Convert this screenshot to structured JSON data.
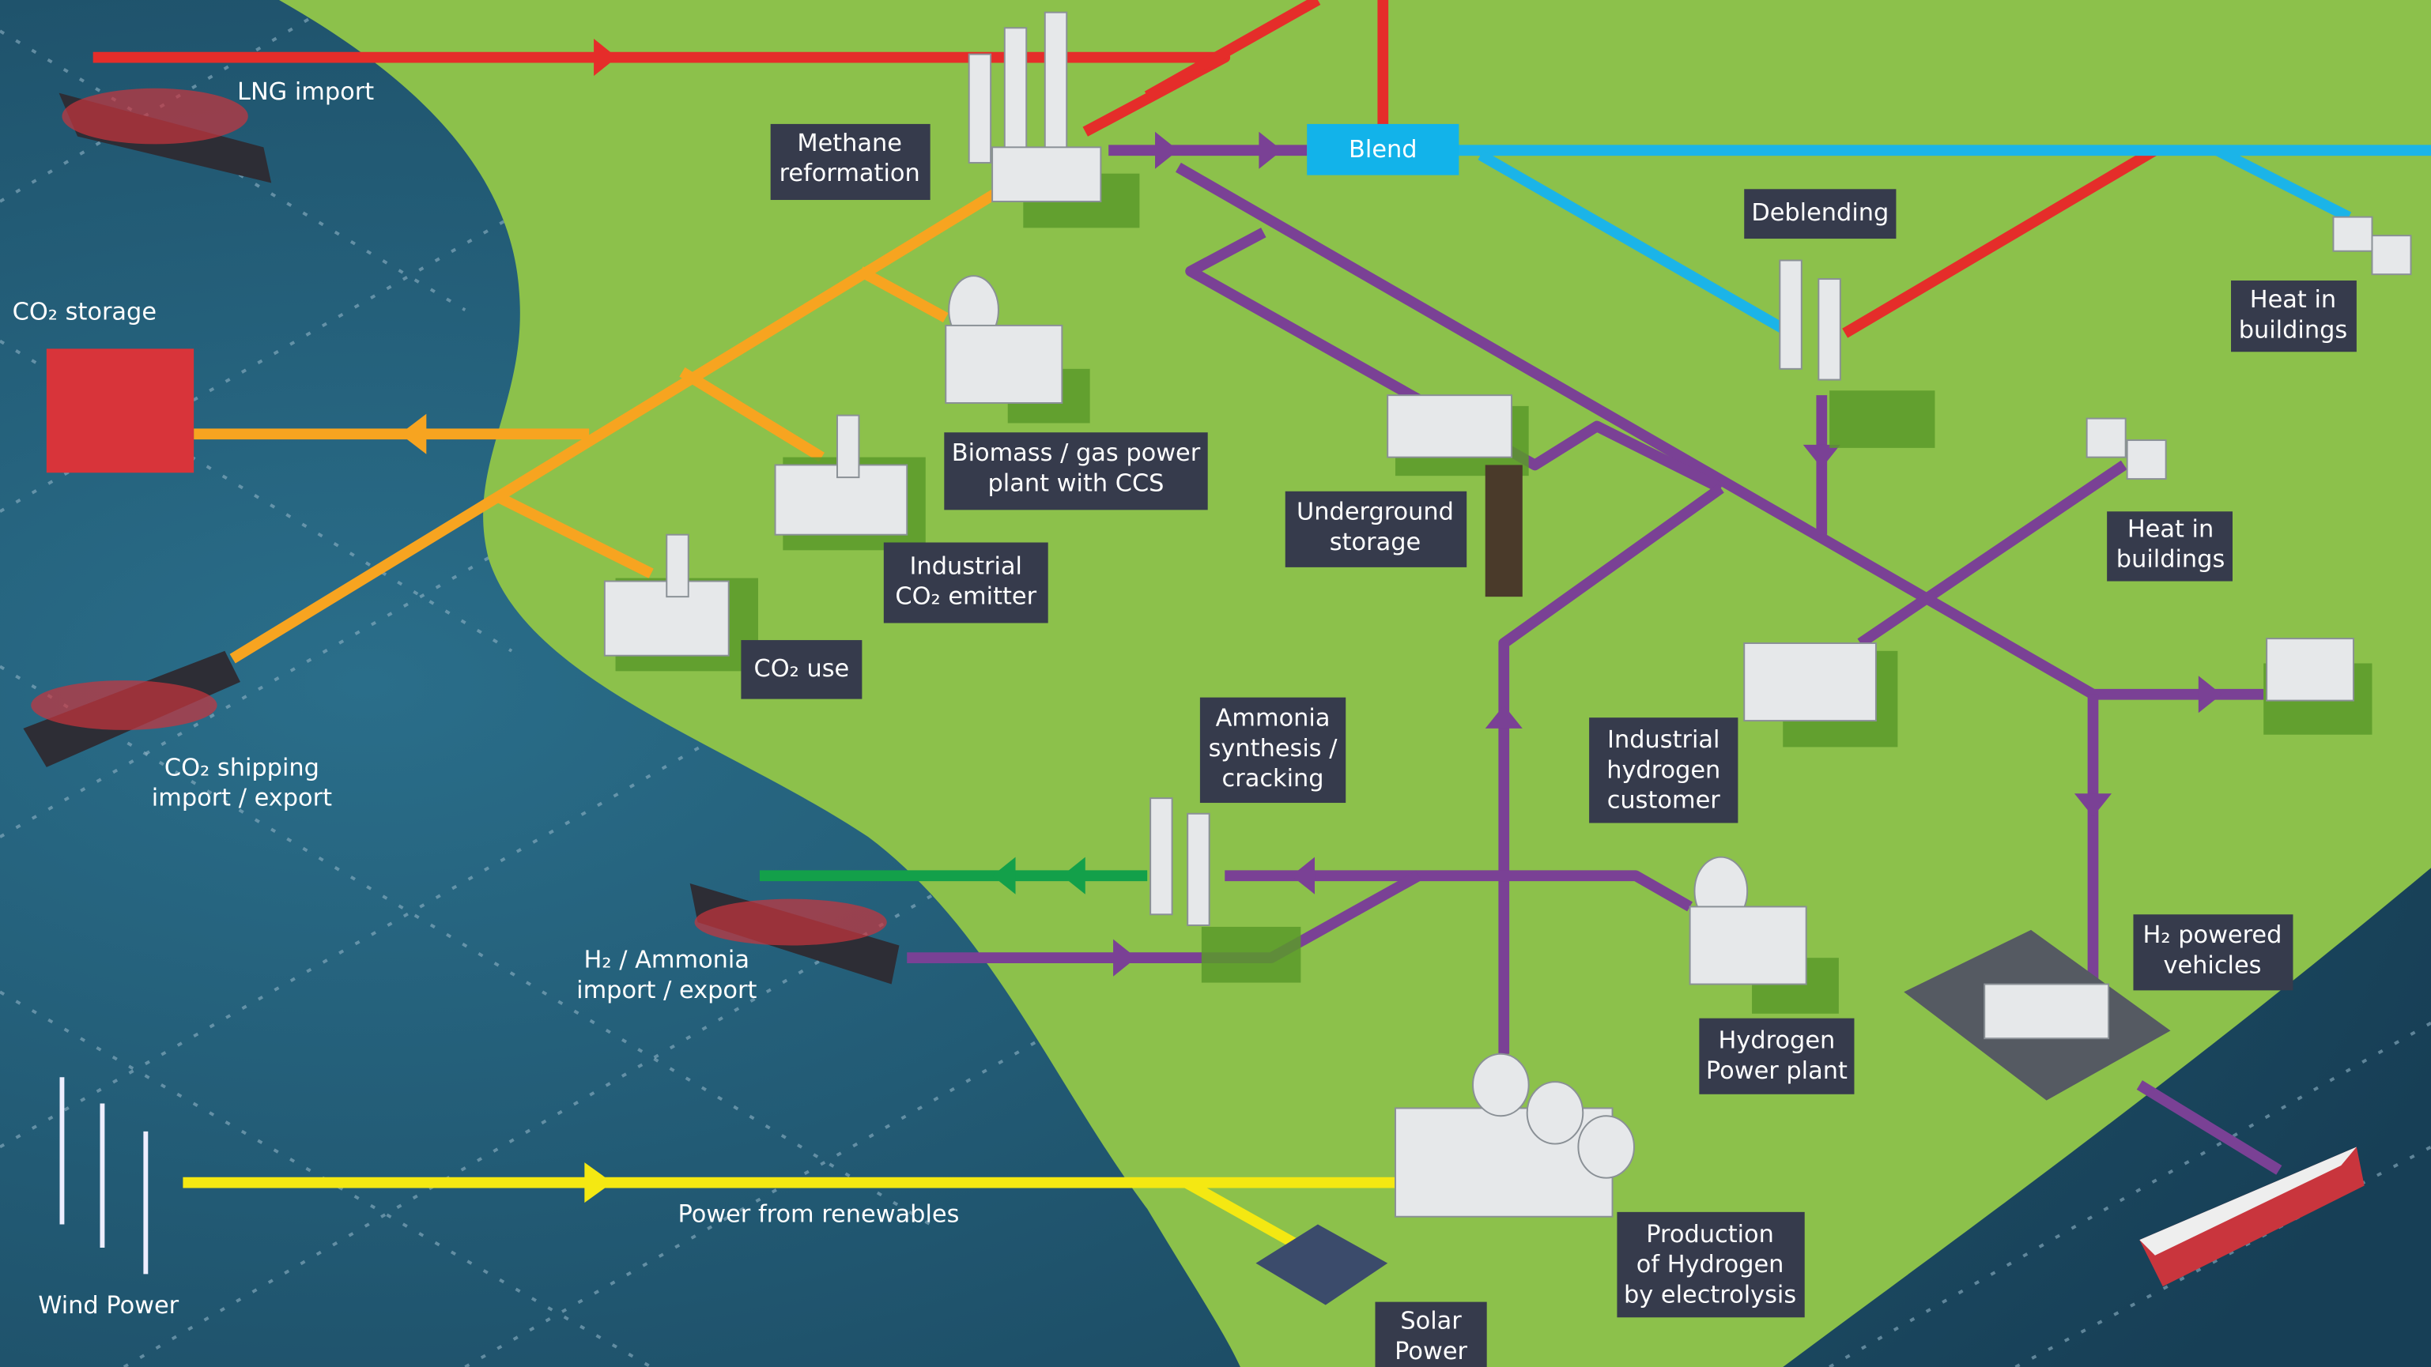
{
  "labels": [
    {
      "lines": [
        "LNG import"
      ]
    },
    {
      "lines": [
        "Methane",
        "reformation"
      ]
    },
    {
      "lines": [
        "Blend"
      ]
    },
    {
      "lines": [
        "Deblending"
      ]
    },
    {
      "lines": [
        "Heat in",
        "buildings"
      ]
    },
    {
      "lines": [
        "CO₂ storage"
      ]
    },
    {
      "lines": [
        "Biomass / gas power",
        "plant with CCS"
      ]
    },
    {
      "lines": [
        "Industrial",
        "CO₂ emitter"
      ]
    },
    {
      "lines": [
        "Underground",
        "storage"
      ]
    },
    {
      "lines": [
        "Heat in",
        "buildings"
      ]
    },
    {
      "lines": [
        "CO₂ use"
      ]
    },
    {
      "lines": [
        "CO₂ shipping",
        "import / export"
      ]
    },
    {
      "lines": [
        "Ammonia",
        "synthesis /",
        "cracking"
      ]
    },
    {
      "lines": [
        "Industrial",
        "hydrogen",
        "customer"
      ]
    },
    {
      "lines": [
        "H₂ / Ammonia",
        "import / export"
      ]
    },
    {
      "lines": [
        "H₂ powered",
        "vehicles"
      ]
    },
    {
      "lines": [
        "Hydrogen",
        "Power plant"
      ]
    },
    {
      "lines": [
        "Power from renewables"
      ]
    },
    {
      "lines": [
        "Wind Power"
      ]
    },
    {
      "lines": [
        "Production",
        "of Hydrogen",
        "by electrolysis"
      ]
    },
    {
      "lines": [
        "Solar",
        "Power"
      ]
    }
  ]
}
